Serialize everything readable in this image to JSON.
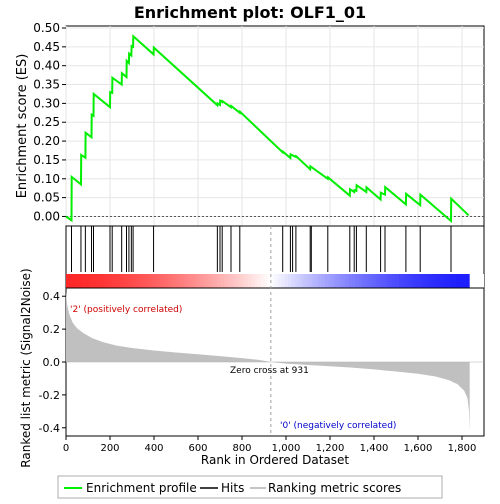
{
  "chart_data": {
    "type": "line",
    "title": "Enrichment plot: OLF1_01",
    "es_panel": {
      "ylabel": "Enrichment score (ES)",
      "ylim": [
        -0.02,
        0.5
      ],
      "yticks": [
        "0.50",
        "0.45",
        "0.40",
        "0.35",
        "0.30",
        "0.25",
        "0.20",
        "0.15",
        "0.10",
        "0.05",
        "0.00"
      ],
      "ytick_values": [
        0.5,
        0.45,
        0.4,
        0.35,
        0.3,
        0.25,
        0.2,
        0.15,
        0.1,
        0.05,
        0.0
      ],
      "series_color": "#00ee00",
      "profile": [
        [
          0,
          0.0
        ],
        [
          25,
          -0.01
        ],
        [
          26,
          0.105
        ],
        [
          68,
          0.085
        ],
        [
          69,
          0.163
        ],
        [
          88,
          0.156
        ],
        [
          89,
          0.222
        ],
        [
          116,
          0.21
        ],
        [
          117,
          0.27
        ],
        [
          125,
          0.267
        ],
        [
          126,
          0.325
        ],
        [
          200,
          0.29
        ],
        [
          201,
          0.33
        ],
        [
          210,
          0.328
        ],
        [
          211,
          0.368
        ],
        [
          253,
          0.35
        ],
        [
          254,
          0.38
        ],
        [
          275,
          0.37
        ],
        [
          276,
          0.413
        ],
        [
          286,
          0.407
        ],
        [
          287,
          0.432
        ],
        [
          297,
          0.427
        ],
        [
          298,
          0.452
        ],
        [
          305,
          0.45
        ],
        [
          306,
          0.478
        ],
        [
          398,
          0.43
        ],
        [
          399,
          0.448
        ],
        [
          688,
          0.295
        ],
        [
          689,
          0.3
        ],
        [
          700,
          0.296
        ],
        [
          701,
          0.307
        ],
        [
          710,
          0.304
        ],
        [
          711,
          0.306
        ],
        [
          750,
          0.29
        ],
        [
          751,
          0.293
        ],
        [
          790,
          0.275
        ],
        [
          791,
          0.278
        ],
        [
          985,
          0.17
        ],
        [
          986,
          0.172
        ],
        [
          1020,
          0.155
        ],
        [
          1021,
          0.165
        ],
        [
          1045,
          0.158
        ],
        [
          1046,
          0.16
        ],
        [
          1110,
          0.125
        ],
        [
          1111,
          0.133
        ],
        [
          1190,
          0.1
        ],
        [
          1191,
          0.104
        ],
        [
          1290,
          0.055
        ],
        [
          1291,
          0.072
        ],
        [
          1310,
          0.065
        ],
        [
          1311,
          0.07
        ],
        [
          1320,
          0.068
        ],
        [
          1321,
          0.083
        ],
        [
          1365,
          0.065
        ],
        [
          1366,
          0.077
        ],
        [
          1430,
          0.045
        ],
        [
          1431,
          0.063
        ],
        [
          1450,
          0.058
        ],
        [
          1451,
          0.078
        ],
        [
          1545,
          0.032
        ],
        [
          1546,
          0.06
        ],
        [
          1610,
          0.03
        ],
        [
          1611,
          0.058
        ],
        [
          1750,
          -0.012
        ],
        [
          1751,
          0.047
        ],
        [
          1830,
          0.003
        ]
      ]
    },
    "hits_panel": {
      "hit_ranks": [
        25,
        68,
        88,
        116,
        125,
        200,
        210,
        253,
        275,
        286,
        297,
        305,
        398,
        688,
        700,
        710,
        750,
        790,
        985,
        1020,
        1030,
        1045,
        1110,
        1115,
        1190,
        1290,
        1310,
        1320,
        1365,
        1430,
        1450,
        1545,
        1610,
        1750
      ]
    },
    "metric_panel": {
      "ylabel": "Ranked list metric (Signal2Noise)",
      "ylim": [
        -0.45,
        0.45
      ],
      "yticks": [
        "0.4",
        "0.2",
        "0.0",
        "-0.2",
        "-0.4"
      ],
      "ytick_values": [
        0.4,
        0.2,
        0.0,
        -0.2,
        -0.4
      ],
      "zero_cross_label": "Zero cross at 931",
      "zero_cross": 931,
      "pos_label": "'2' (positively correlated)",
      "neg_label": "'0' (negatively correlated)",
      "metric_curve": [
        [
          0,
          0.43
        ],
        [
          5,
          0.35
        ],
        [
          15,
          0.29
        ],
        [
          30,
          0.24
        ],
        [
          50,
          0.205
        ],
        [
          80,
          0.175
        ],
        [
          120,
          0.145
        ],
        [
          170,
          0.12
        ],
        [
          230,
          0.1
        ],
        [
          300,
          0.085
        ],
        [
          400,
          0.07
        ],
        [
          500,
          0.058
        ],
        [
          600,
          0.047
        ],
        [
          700,
          0.036
        ],
        [
          800,
          0.024
        ],
        [
          880,
          0.012
        ],
        [
          931,
          0.0
        ],
        [
          1000,
          -0.01
        ],
        [
          1100,
          -0.018
        ],
        [
          1200,
          -0.026
        ],
        [
          1300,
          -0.034
        ],
        [
          1400,
          -0.045
        ],
        [
          1500,
          -0.058
        ],
        [
          1600,
          -0.072
        ],
        [
          1680,
          -0.088
        ],
        [
          1740,
          -0.11
        ],
        [
          1780,
          -0.135
        ],
        [
          1810,
          -0.175
        ],
        [
          1825,
          -0.22
        ],
        [
          1832,
          -0.3
        ],
        [
          1835,
          -0.42
        ]
      ]
    },
    "xaxis": {
      "xlabel": "Rank in Ordered Dataset",
      "xlim": [
        0,
        1900
      ],
      "xticks": [
        "0",
        "200",
        "400",
        "600",
        "800",
        "1,000",
        "1,200",
        "1,400",
        "1,600",
        "1,800"
      ],
      "xtick_values": [
        0,
        200,
        400,
        600,
        800,
        1000,
        1200,
        1400,
        1600,
        1800
      ],
      "n_genes": 1835
    },
    "legend": {
      "placement": "bottom",
      "items": [
        {
          "label": "Enrichment profile",
          "color": "#00ee00"
        },
        {
          "label": "Hits",
          "color": "#000000"
        },
        {
          "label": "Ranking metric scores",
          "color": "#c0c0c0"
        }
      ]
    },
    "colors": {
      "positive": "#ff0000",
      "neutral": "#ffffff",
      "negative": "#0000ff",
      "metric_fill": "#c0c0c0",
      "zero_line": "#a0a0a0"
    }
  }
}
